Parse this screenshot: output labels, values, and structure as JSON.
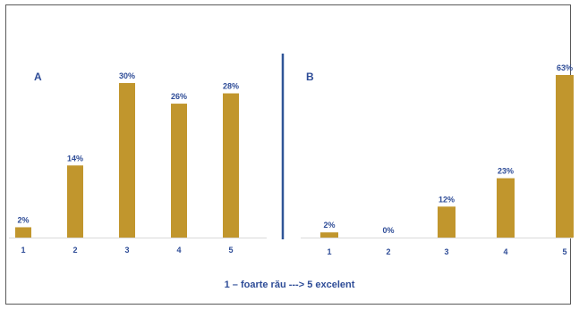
{
  "colors": {
    "bar": "#C1962D",
    "label": "#2E4C97",
    "axis": "#D9D9D9",
    "divider": "#2F5597"
  },
  "chart_data": [
    {
      "type": "bar",
      "title": "A",
      "categories": [
        "1",
        "2",
        "3",
        "4",
        "5"
      ],
      "values": [
        2,
        14,
        30,
        26,
        28
      ],
      "data_labels": [
        "2%",
        "14%",
        "30%",
        "26%",
        "28%"
      ],
      "ylim": [
        0,
        30
      ],
      "grid": false
    },
    {
      "type": "bar",
      "title": "B",
      "categories": [
        "1",
        "2",
        "3",
        "4",
        "5"
      ],
      "values": [
        2,
        0,
        12,
        23,
        63
      ],
      "data_labels": [
        "2%",
        "0%",
        "12%",
        "23%",
        "63%"
      ],
      "ylim": [
        0,
        63
      ],
      "grid": false
    }
  ],
  "footer": "1 – foarte rău ---> 5 excelent"
}
